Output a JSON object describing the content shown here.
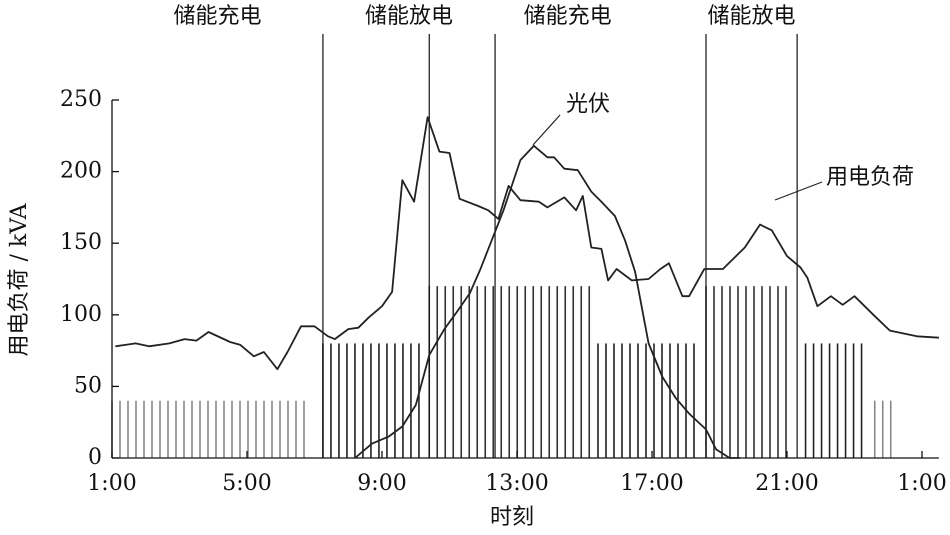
{
  "chart_data": {
    "type": "line",
    "x_label": "时刻",
    "y_label": "用电负荷 / kVA",
    "xlim": [
      1,
      25.5
    ],
    "xticks": [
      {
        "value": 1,
        "label": "1:00"
      },
      {
        "value": 5,
        "label": "5:00"
      },
      {
        "value": 9,
        "label": "9:00"
      },
      {
        "value": 13,
        "label": "13:00"
      },
      {
        "value": 17,
        "label": "17:00"
      },
      {
        "value": 21,
        "label": "21:00"
      },
      {
        "value": 25,
        "label": "1:00"
      }
    ],
    "ylim": [
      0,
      250
    ],
    "yticks": [
      0,
      50,
      100,
      150,
      200,
      250
    ],
    "series": [
      {
        "name": "用电负荷",
        "color": "#222222",
        "x": [
          1.1,
          1.7,
          2.1,
          2.7,
          3.15,
          3.5,
          3.86,
          4.5,
          4.8,
          5.2,
          5.5,
          5.9,
          6.2,
          6.6,
          7.0,
          7.4,
          7.6,
          8.0,
          8.3,
          8.6,
          9.0,
          9.3,
          9.6,
          9.95,
          10.35,
          10.7,
          11.0,
          11.3,
          11.85,
          12.15,
          12.45,
          12.75,
          13.1,
          13.65,
          13.9,
          14.4,
          14.75,
          14.95,
          15.2,
          15.5,
          15.7,
          15.95,
          16.4,
          16.9,
          17.25,
          17.5,
          17.9,
          18.1,
          18.55,
          19.1,
          19.75,
          20.2,
          20.55,
          21.0,
          21.4,
          21.6,
          21.9,
          22.3,
          22.65,
          23.0,
          23.6,
          24.05,
          24.85,
          25.5
        ],
        "values": [
          78,
          80,
          78,
          80,
          83,
          82,
          88,
          81,
          79,
          71,
          74,
          62,
          74,
          92,
          92,
          85,
          83,
          90,
          91,
          98,
          106,
          116,
          194,
          179,
          238,
          214,
          213,
          181,
          176,
          173,
          167,
          190,
          180,
          179,
          175,
          182,
          173,
          183,
          147,
          146,
          124,
          132,
          124,
          125,
          132,
          136,
          113,
          113,
          132,
          132,
          147,
          163,
          159,
          141,
          133,
          126,
          106,
          113,
          107,
          113,
          99,
          89,
          85,
          84
        ]
      },
      {
        "name": "光伏",
        "color": "#222222",
        "x": [
          8.2,
          8.7,
          9.2,
          9.6,
          10.0,
          10.4,
          10.85,
          11.25,
          11.6,
          11.9,
          12.25,
          12.6,
          13.1,
          13.5,
          13.9,
          14.1,
          14.4,
          14.8,
          15.2,
          15.5,
          15.9,
          16.2,
          16.5,
          16.9,
          17.3,
          17.7,
          18.1,
          18.6,
          18.9,
          19.3,
          19.6
        ],
        "values": [
          0,
          10,
          15,
          22,
          37,
          72,
          90,
          103,
          115,
          131,
          152,
          173,
          208,
          218,
          210,
          210,
          202,
          201,
          186,
          179,
          169,
          152,
          130,
          80,
          57,
          42,
          31,
          20,
          6,
          0,
          0
        ]
      }
    ],
    "bands": [
      {
        "start": 1,
        "end": 6.9,
        "value": 40,
        "color": "#888888"
      },
      {
        "start": 7.25,
        "end": 10.1,
        "value": 80,
        "color": "#222222"
      },
      {
        "start": 10.4,
        "end": 15.25,
        "value": 120,
        "color": "#333333"
      },
      {
        "start": 15.4,
        "end": 18.25,
        "value": 80,
        "color": "#222222"
      },
      {
        "start": 18.6,
        "end": 21.1,
        "value": 120,
        "color": "#333333"
      },
      {
        "start": 21.55,
        "end": 23.4,
        "value": 80,
        "color": "#222222"
      },
      {
        "start": 23.6,
        "end": 24.3,
        "value": 40,
        "color": "#888888"
      }
    ],
    "boundaries": [
      7.25,
      10.4,
      12.35,
      18.6,
      21.3
    ],
    "periods": [
      {
        "label": "储能充电",
        "start": 1,
        "end": 7.25
      },
      {
        "label": "储能放电",
        "start": 7.25,
        "end": 12.35
      },
      {
        "label": "储能充电",
        "start": 10.4,
        "end": 18.6
      },
      {
        "label": "储能放电",
        "start": 18.6,
        "end": 21.3
      }
    ]
  }
}
